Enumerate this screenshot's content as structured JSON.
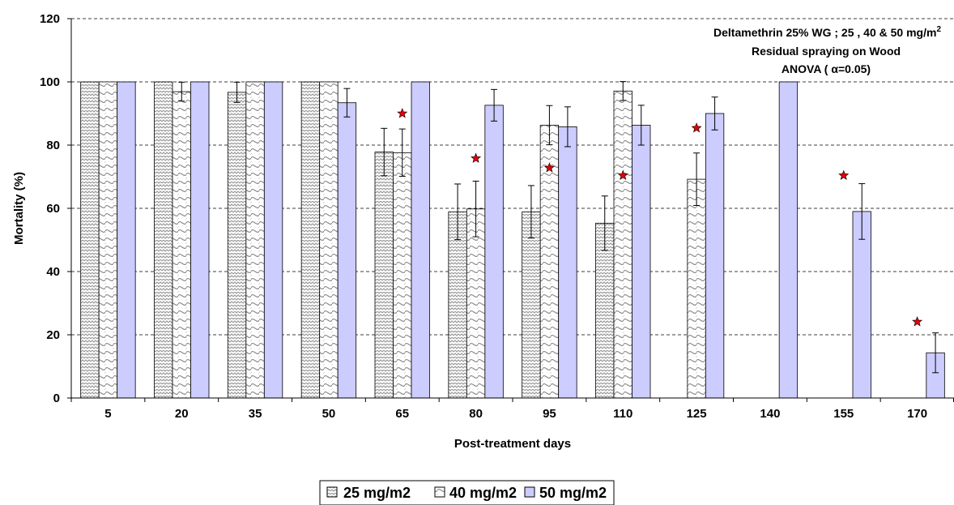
{
  "chart_data": {
    "type": "bar",
    "xlabel": "Post-treatment days",
    "ylabel": "Mortality (%)",
    "ylim": [
      0,
      120
    ],
    "yticks": [
      0,
      20,
      40,
      60,
      80,
      100,
      120
    ],
    "grid": "horizontal dashed",
    "categories": [
      "5",
      "20",
      "35",
      "50",
      "65",
      "80",
      "95",
      "110",
      "125",
      "140",
      "155",
      "170"
    ],
    "series": [
      {
        "name": "25 mg/m2",
        "pattern": "zigzag-hatch",
        "values": [
          100,
          100,
          96.7,
          100,
          77.8,
          58.9,
          58.9,
          55.3,
          null,
          null,
          null,
          null
        ],
        "errors": [
          0,
          0,
          3.2,
          0,
          7.5,
          8.8,
          8.3,
          8.6,
          null,
          null,
          null,
          null
        ]
      },
      {
        "name": "40 mg/m2",
        "pattern": "wave-hatch",
        "values": [
          100,
          96.9,
          100,
          100,
          77.6,
          59.8,
          86.3,
          97.1,
          69.2,
          null,
          null,
          null
        ],
        "errors": [
          0,
          3,
          0,
          0,
          7.5,
          8.8,
          6.2,
          3,
          8.3,
          null,
          null,
          null
        ]
      },
      {
        "name": "50 mg/m2",
        "color": "#ccccff",
        "values": [
          100,
          100,
          100,
          93.4,
          100,
          92.6,
          85.8,
          86.3,
          90,
          100,
          59,
          14.3
        ],
        "errors": [
          0,
          0,
          0,
          4.5,
          0,
          5,
          6.3,
          6.3,
          5.2,
          0,
          8.8,
          6.3
        ]
      }
    ],
    "significance_markers": [
      {
        "category": "65",
        "y": 90
      },
      {
        "category": "80",
        "y": 75.8
      },
      {
        "category": "95",
        "y": 72.8
      },
      {
        "category": "110",
        "y": 70.4
      },
      {
        "category": "125",
        "y": 85.4
      },
      {
        "category": "155",
        "y": 70.4
      },
      {
        "category": "170",
        "y": 24.1
      }
    ],
    "marker_color": "#e60000",
    "annotation": {
      "line1": "Deltamethrin 25% WG ;  25 , 40 & 50 mg/m",
      "line1_sup": "2",
      "line2": "Residual spraying on Wood",
      "line3": "ANOVA ( α=0.05)"
    },
    "legend": {
      "position": "bottom",
      "entries": [
        "25 mg/m2",
        "40 mg/m2",
        "50 mg/m2"
      ]
    }
  }
}
